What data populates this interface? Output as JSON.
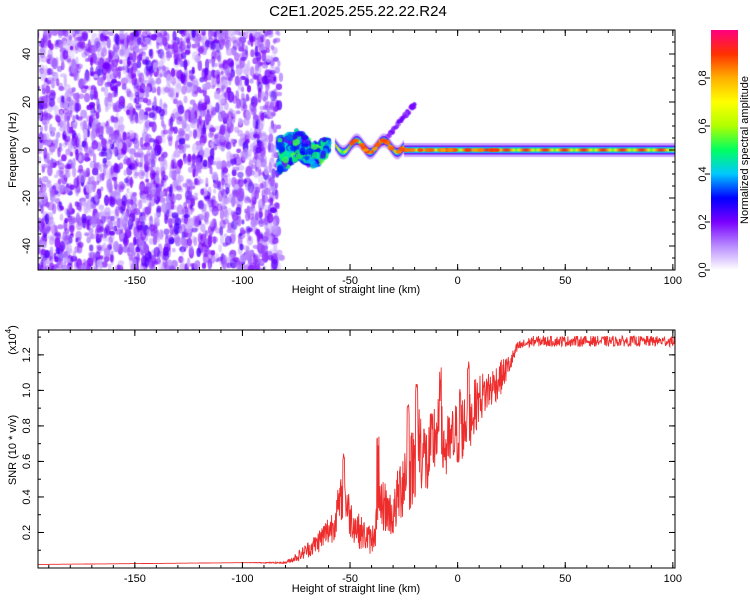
{
  "figure": {
    "title": "C2E1.2025.255.22.22.R24"
  },
  "chart_data": [
    {
      "type": "heatmap",
      "xlabel": "Height of straight line (km)",
      "ylabel": "Frequency (Hz)",
      "xlim": [
        -195,
        101
      ],
      "ylim": [
        -50,
        50
      ],
      "xticks": [
        -150,
        -100,
        -50,
        0,
        50,
        100
      ],
      "yticks": [
        -40,
        -20,
        0,
        20,
        40
      ],
      "colorbar": {
        "label": "Normalized spectral amplitude",
        "range": [
          0,
          1
        ],
        "ticks": [
          0.0,
          0.2,
          0.4,
          0.6,
          0.8
        ],
        "tick_labels": [
          "0.0",
          "0.2",
          "0.4",
          "0.6",
          "0.8"
        ],
        "colors": [
          "#ffffff",
          "#b88cff",
          "#7a00ff",
          "#0000ff",
          "#00c8ff",
          "#00ff60",
          "#b0ff00",
          "#ffff00",
          "#ffb000",
          "#ff3000",
          "#ff0080"
        ]
      },
      "features": {
        "noise_region_x": [
          -195,
          -83
        ],
        "noise_amplitude": 0.15,
        "transition_x": [
          -83,
          -60
        ],
        "main_line_x": [
          -57,
          101
        ],
        "main_line_freq": 0,
        "branch_x": [
          -35,
          -20
        ],
        "branch_freq": [
          3,
          19
        ],
        "peak_amplitude": 0.9
      }
    },
    {
      "type": "line",
      "xlabel": "Height of straight line (km)",
      "ylabel": "SNR (10 * v/v)",
      "multiplier": "(x10",
      "multiplier_exp": "4",
      "multiplier_close": ")",
      "xlim": [
        -195,
        101
      ],
      "ylim": [
        0,
        1.34
      ],
      "xticks": [
        -150,
        -100,
        -50,
        0,
        50,
        100
      ],
      "yticks": [
        0.2,
        0.4,
        0.6,
        0.8,
        1.0,
        1.2
      ],
      "ytick_labels": [
        "0.2",
        "0.4",
        "0.6",
        "0.8",
        "1.0",
        "1.2"
      ],
      "color": "#ee2c2c",
      "series": [
        {
          "name": "SNR",
          "x": [
            -195,
            -100,
            -80,
            -74,
            -66,
            -58,
            -53,
            -50,
            -46,
            -40,
            -35,
            -30,
            -25,
            -22,
            -18,
            -14,
            -10,
            -5,
            0,
            5,
            10,
            15,
            20,
            25,
            28,
            35,
            50,
            75,
            101
          ],
          "y": [
            0.02,
            0.03,
            0.03,
            0.07,
            0.14,
            0.25,
            0.44,
            0.3,
            0.22,
            0.16,
            0.38,
            0.3,
            0.55,
            0.55,
            0.75,
            0.6,
            0.8,
            0.68,
            0.78,
            0.85,
            0.97,
            1.02,
            1.08,
            1.17,
            1.25,
            1.28,
            1.28,
            1.28,
            1.28
          ],
          "noise": [
            0.0,
            0.0,
            0.005,
            0.03,
            0.06,
            0.1,
            0.14,
            0.12,
            0.1,
            0.08,
            0.16,
            0.12,
            0.24,
            0.22,
            0.26,
            0.22,
            0.24,
            0.2,
            0.2,
            0.18,
            0.14,
            0.12,
            0.1,
            0.05,
            0.03,
            0.03,
            0.03,
            0.03,
            0.03
          ],
          "spikes": [
            {
              "x": -53,
              "y": 0.66
            },
            {
              "x": -37,
              "y": 0.74
            },
            {
              "x": -23,
              "y": 0.93
            },
            {
              "x": -19,
              "y": 1.06
            },
            {
              "x": -8,
              "y": 1.13
            },
            {
              "x": 1,
              "y": 1.02
            },
            {
              "x": 5,
              "y": 1.21
            }
          ]
        }
      ]
    }
  ]
}
